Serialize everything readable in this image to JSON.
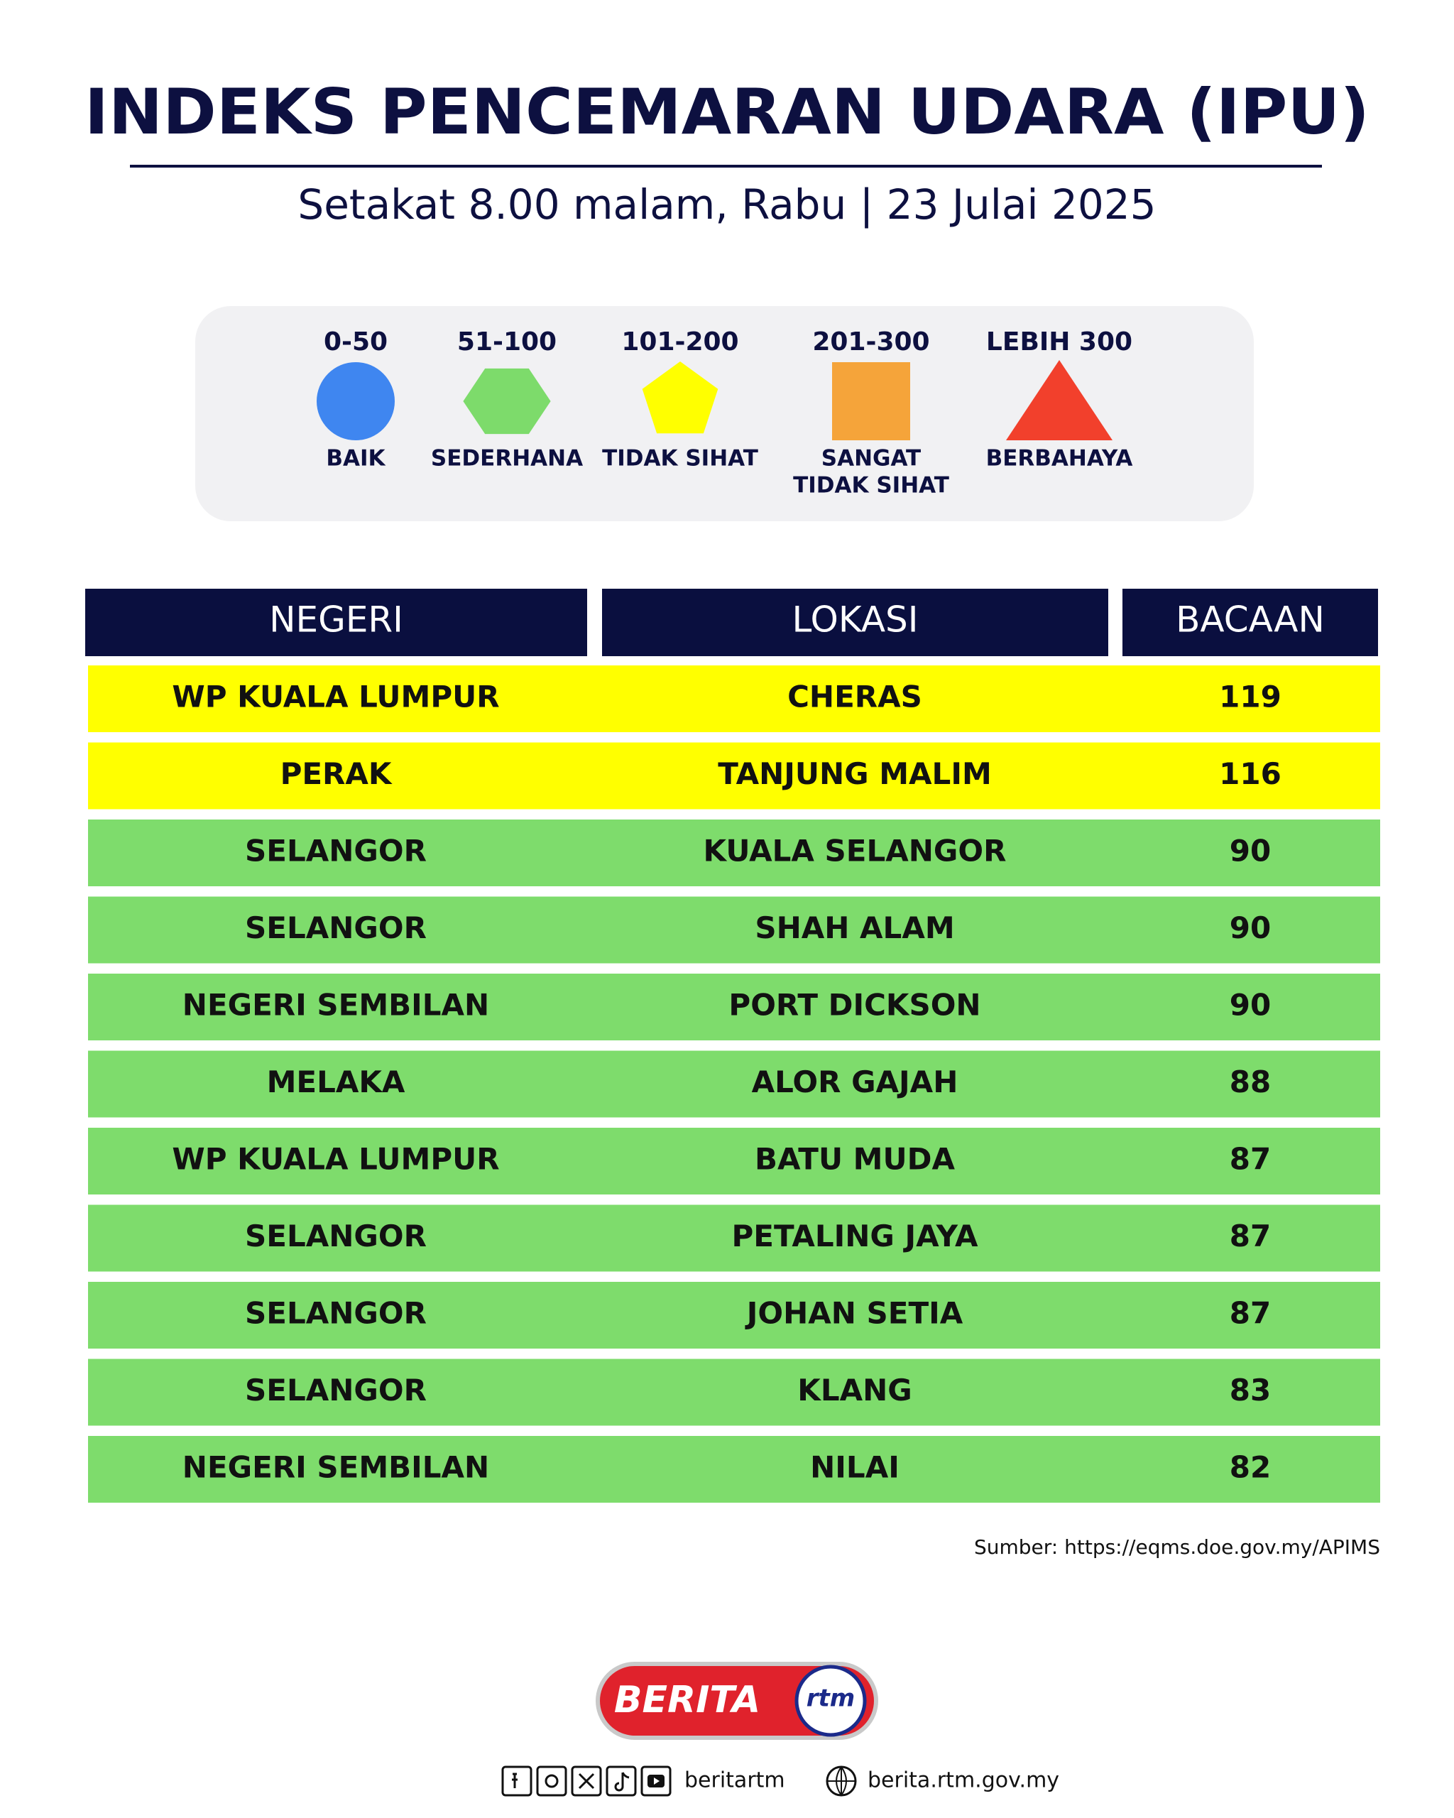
{
  "header": {
    "title": "INDEKS PENCEMARAN UDARA (IPU)",
    "subtitle": "Setakat 8.00 malam, Rabu | 23 Julai 2025"
  },
  "legend": [
    {
      "range": "0-50",
      "label": "BAIK",
      "shape": "circle",
      "color": "#3f86f0"
    },
    {
      "range": "51-100",
      "label": "SEDERHANA",
      "shape": "hexagon",
      "color": "#7ddb6b"
    },
    {
      "range": "101-200",
      "label": "TIDAK SIHAT",
      "shape": "pentagon",
      "color": "#ffff00"
    },
    {
      "range": "201-300",
      "label": [
        "SANGAT",
        "TIDAK SIHAT"
      ],
      "shape": "square",
      "color": "#f5a43a"
    },
    {
      "range": "LEBIH 300",
      "label": "BERBAHAYA",
      "shape": "triangle",
      "color": "#f2402c"
    }
  ],
  "table": {
    "columns": [
      "NEGERI",
      "LOKASI",
      "BACAAN"
    ],
    "rows": [
      {
        "cells": [
          "WP KUALA LUMPUR",
          "CHERAS",
          119
        ],
        "color": "#ffff00"
      },
      {
        "cells": [
          "PERAK",
          "TANJUNG MALIM",
          116
        ],
        "color": "#ffff00"
      },
      {
        "cells": [
          "SELANGOR",
          "KUALA SELANGOR",
          90
        ],
        "color": "#7edc6c"
      },
      {
        "cells": [
          "SELANGOR",
          "SHAH ALAM",
          90
        ],
        "color": "#7edc6c"
      },
      {
        "cells": [
          "NEGERI SEMBILAN",
          "PORT DICKSON",
          90
        ],
        "color": "#7edc6c"
      },
      {
        "cells": [
          "MELAKA",
          "ALOR GAJAH",
          88
        ],
        "color": "#7edc6c"
      },
      {
        "cells": [
          "WP KUALA LUMPUR",
          "BATU MUDA",
          87
        ],
        "color": "#7edc6c"
      },
      {
        "cells": [
          "SELANGOR",
          "PETALING JAYA",
          87
        ],
        "color": "#7edc6c"
      },
      {
        "cells": [
          "SELANGOR",
          "JOHAN SETIA",
          87
        ],
        "color": "#7edc6c"
      },
      {
        "cells": [
          "SELANGOR",
          "KLANG",
          83
        ],
        "color": "#7edc6c"
      },
      {
        "cells": [
          "NEGERI SEMBILAN",
          "NILAI",
          82
        ],
        "color": "#7edc6c"
      }
    ]
  },
  "source": "Sumber: https://eqms.doe.gov.my/APIMS",
  "footer": {
    "logo": "BERITA",
    "logo_mark": "rtm",
    "social": "beritartm",
    "website": "berita.rtm.gov.my"
  }
}
